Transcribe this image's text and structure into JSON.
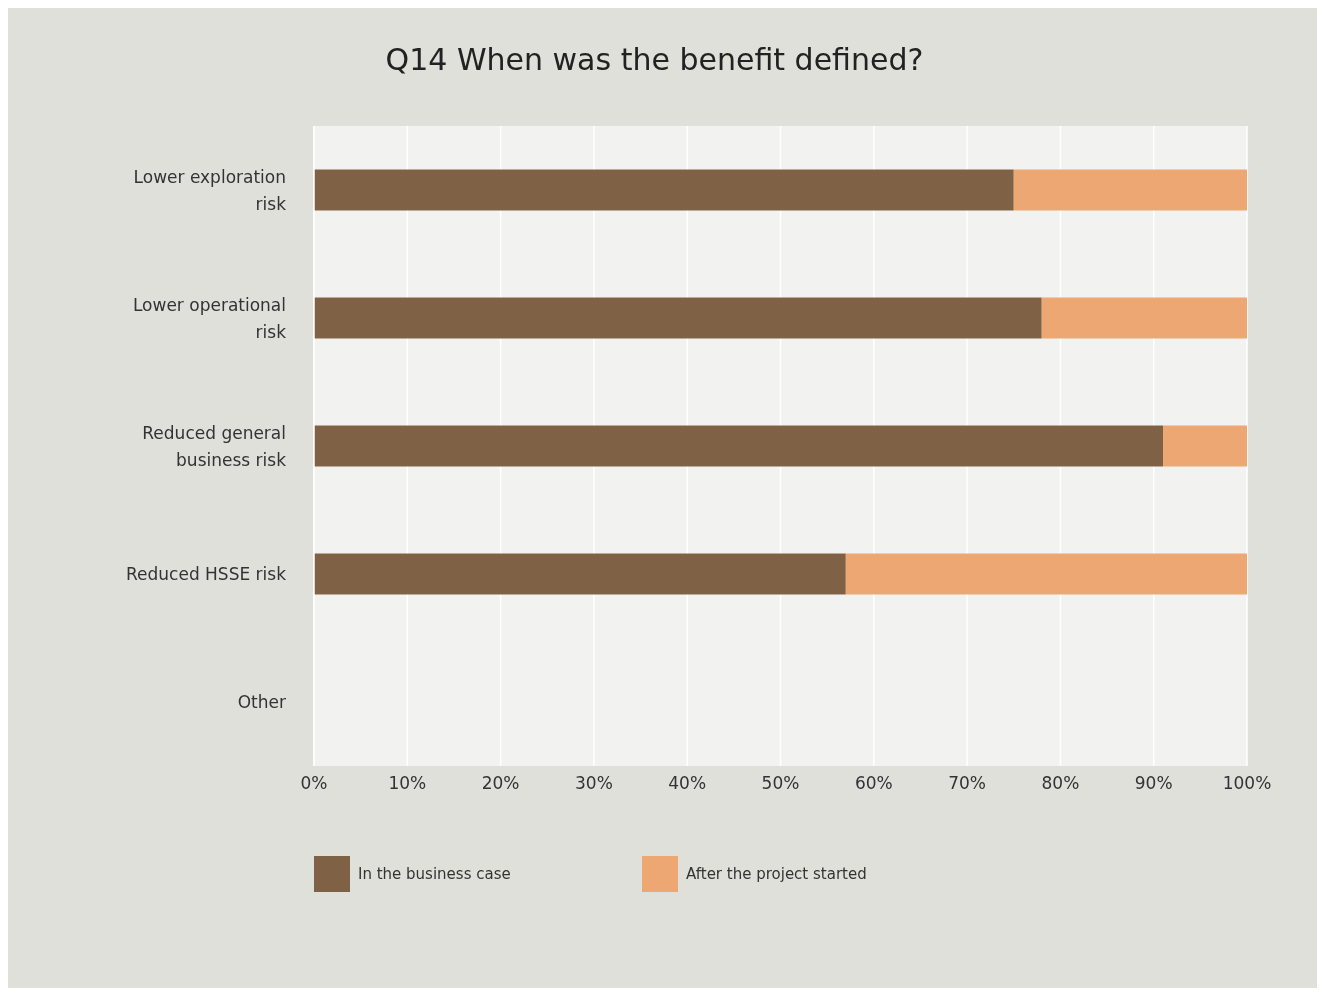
{
  "chart_data": {
    "type": "bar",
    "orientation": "horizontal",
    "stacked": true,
    "title": "Q14 When was the benefit defined?",
    "categories": [
      "Lower exploration risk",
      "Lower operational risk",
      "Reduced general business risk",
      "Reduced HSSE risk",
      "Other"
    ],
    "series": [
      {
        "name": "In the business case",
        "color": "#7f6145",
        "values": [
          75,
          78,
          91,
          57,
          null
        ]
      },
      {
        "name": "After the project started",
        "color": "#eda772",
        "values": [
          25,
          22,
          9,
          43,
          null
        ]
      }
    ],
    "xlim": [
      0,
      100
    ],
    "xticks": [
      {
        "value": 0,
        "label": "0%"
      },
      {
        "value": 10,
        "label": "10%"
      },
      {
        "value": 20,
        "label": "20%"
      },
      {
        "value": 30,
        "label": "30%"
      },
      {
        "value": 40,
        "label": "40%"
      },
      {
        "value": 50,
        "label": "50%"
      },
      {
        "value": 60,
        "label": "60%"
      },
      {
        "value": 70,
        "label": "70%"
      },
      {
        "value": 80,
        "label": "80%"
      },
      {
        "value": 90,
        "label": "90%"
      },
      {
        "value": 100,
        "label": "100%"
      }
    ],
    "grid": "x",
    "legend": "bottom"
  }
}
